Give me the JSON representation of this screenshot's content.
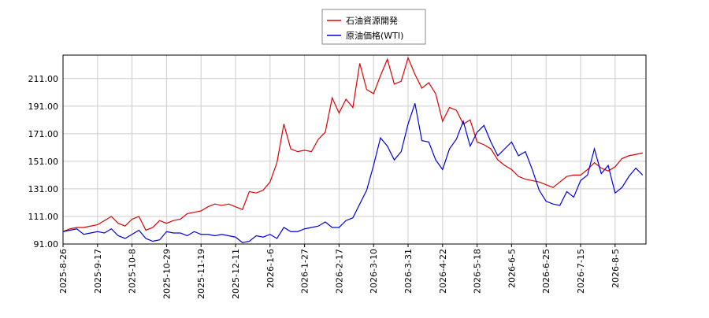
{
  "chart_data": {
    "type": "line",
    "categories": [
      "2025-8-26",
      null,
      null,
      null,
      null,
      "2025-9-17",
      null,
      null,
      null,
      null,
      "2025-10-8",
      null,
      null,
      null,
      null,
      "2025-10-29",
      null,
      null,
      null,
      null,
      "2025-11-19",
      null,
      null,
      null,
      null,
      "2025-12-11",
      null,
      null,
      null,
      null,
      "2026-1-6",
      null,
      null,
      null,
      null,
      "2026-1-27",
      null,
      null,
      null,
      null,
      "2026-2-17",
      null,
      null,
      null,
      null,
      "2026-3-10",
      null,
      null,
      null,
      null,
      "2026-3-31",
      null,
      null,
      null,
      null,
      "2026-4-22",
      null,
      null,
      null,
      null,
      "2026-5-18",
      null,
      null,
      null,
      null,
      "2026-6-5",
      null,
      null,
      null,
      null,
      "2026-6-25",
      null,
      null,
      null,
      null,
      "2026-7-15",
      null,
      null,
      null,
      null,
      "2026-8-5",
      null,
      null,
      null,
      null
    ],
    "series": [
      {
        "name": "石油資源開発",
        "color": "#dd0000",
        "values": [
          100,
          102,
          103,
          103,
          104,
          105,
          108,
          111,
          106,
          104,
          109,
          111,
          101,
          103,
          108,
          106,
          108,
          109,
          113,
          114,
          115,
          118,
          120,
          119,
          120,
          118,
          116,
          129,
          128,
          130,
          136,
          150,
          178,
          160,
          158,
          159,
          158,
          167,
          172,
          197,
          186,
          196,
          190,
          222,
          203,
          200,
          213,
          225,
          207,
          209,
          226,
          214,
          204,
          208,
          200,
          180,
          190,
          188,
          178,
          181,
          165,
          163,
          160,
          152,
          148,
          145,
          140,
          138,
          137,
          136,
          134,
          132,
          136,
          140,
          141,
          141,
          145,
          150,
          146,
          144,
          147,
          153,
          155,
          156,
          157
        ]
      },
      {
        "name": "原油価格(WTI)",
        "color": "#0000dd",
        "values": [
          100,
          101,
          102,
          98,
          99,
          100,
          99,
          102,
          97,
          95,
          98,
          101,
          95,
          93,
          94,
          100,
          99,
          99,
          97,
          100,
          98,
          98,
          97,
          98,
          97,
          96,
          92,
          93,
          97,
          96,
          98,
          95,
          103,
          100,
          100,
          102,
          103,
          104,
          107,
          103,
          103,
          108,
          110,
          120,
          130,
          148,
          168,
          162,
          152,
          158,
          178,
          193,
          166,
          165,
          152,
          145,
          160,
          167,
          180,
          162,
          172,
          177,
          165,
          155,
          160,
          165,
          155,
          158,
          145,
          130,
          122,
          120,
          119,
          129,
          125,
          137,
          141,
          160,
          142,
          148,
          128,
          132,
          140,
          146,
          141
        ]
      }
    ],
    "ylim": [
      91,
      228
    ],
    "yticks": [
      {
        "value": 91,
        "label": "91.00"
      },
      {
        "value": 111,
        "label": "111.00"
      },
      {
        "value": 131,
        "label": "131.00"
      },
      {
        "value": 151,
        "label": "151.00"
      },
      {
        "value": 171,
        "label": "171.00"
      },
      {
        "value": 191,
        "label": "191.00"
      },
      {
        "value": 211,
        "label": "211.00"
      }
    ],
    "grid": true,
    "legend": "top"
  }
}
